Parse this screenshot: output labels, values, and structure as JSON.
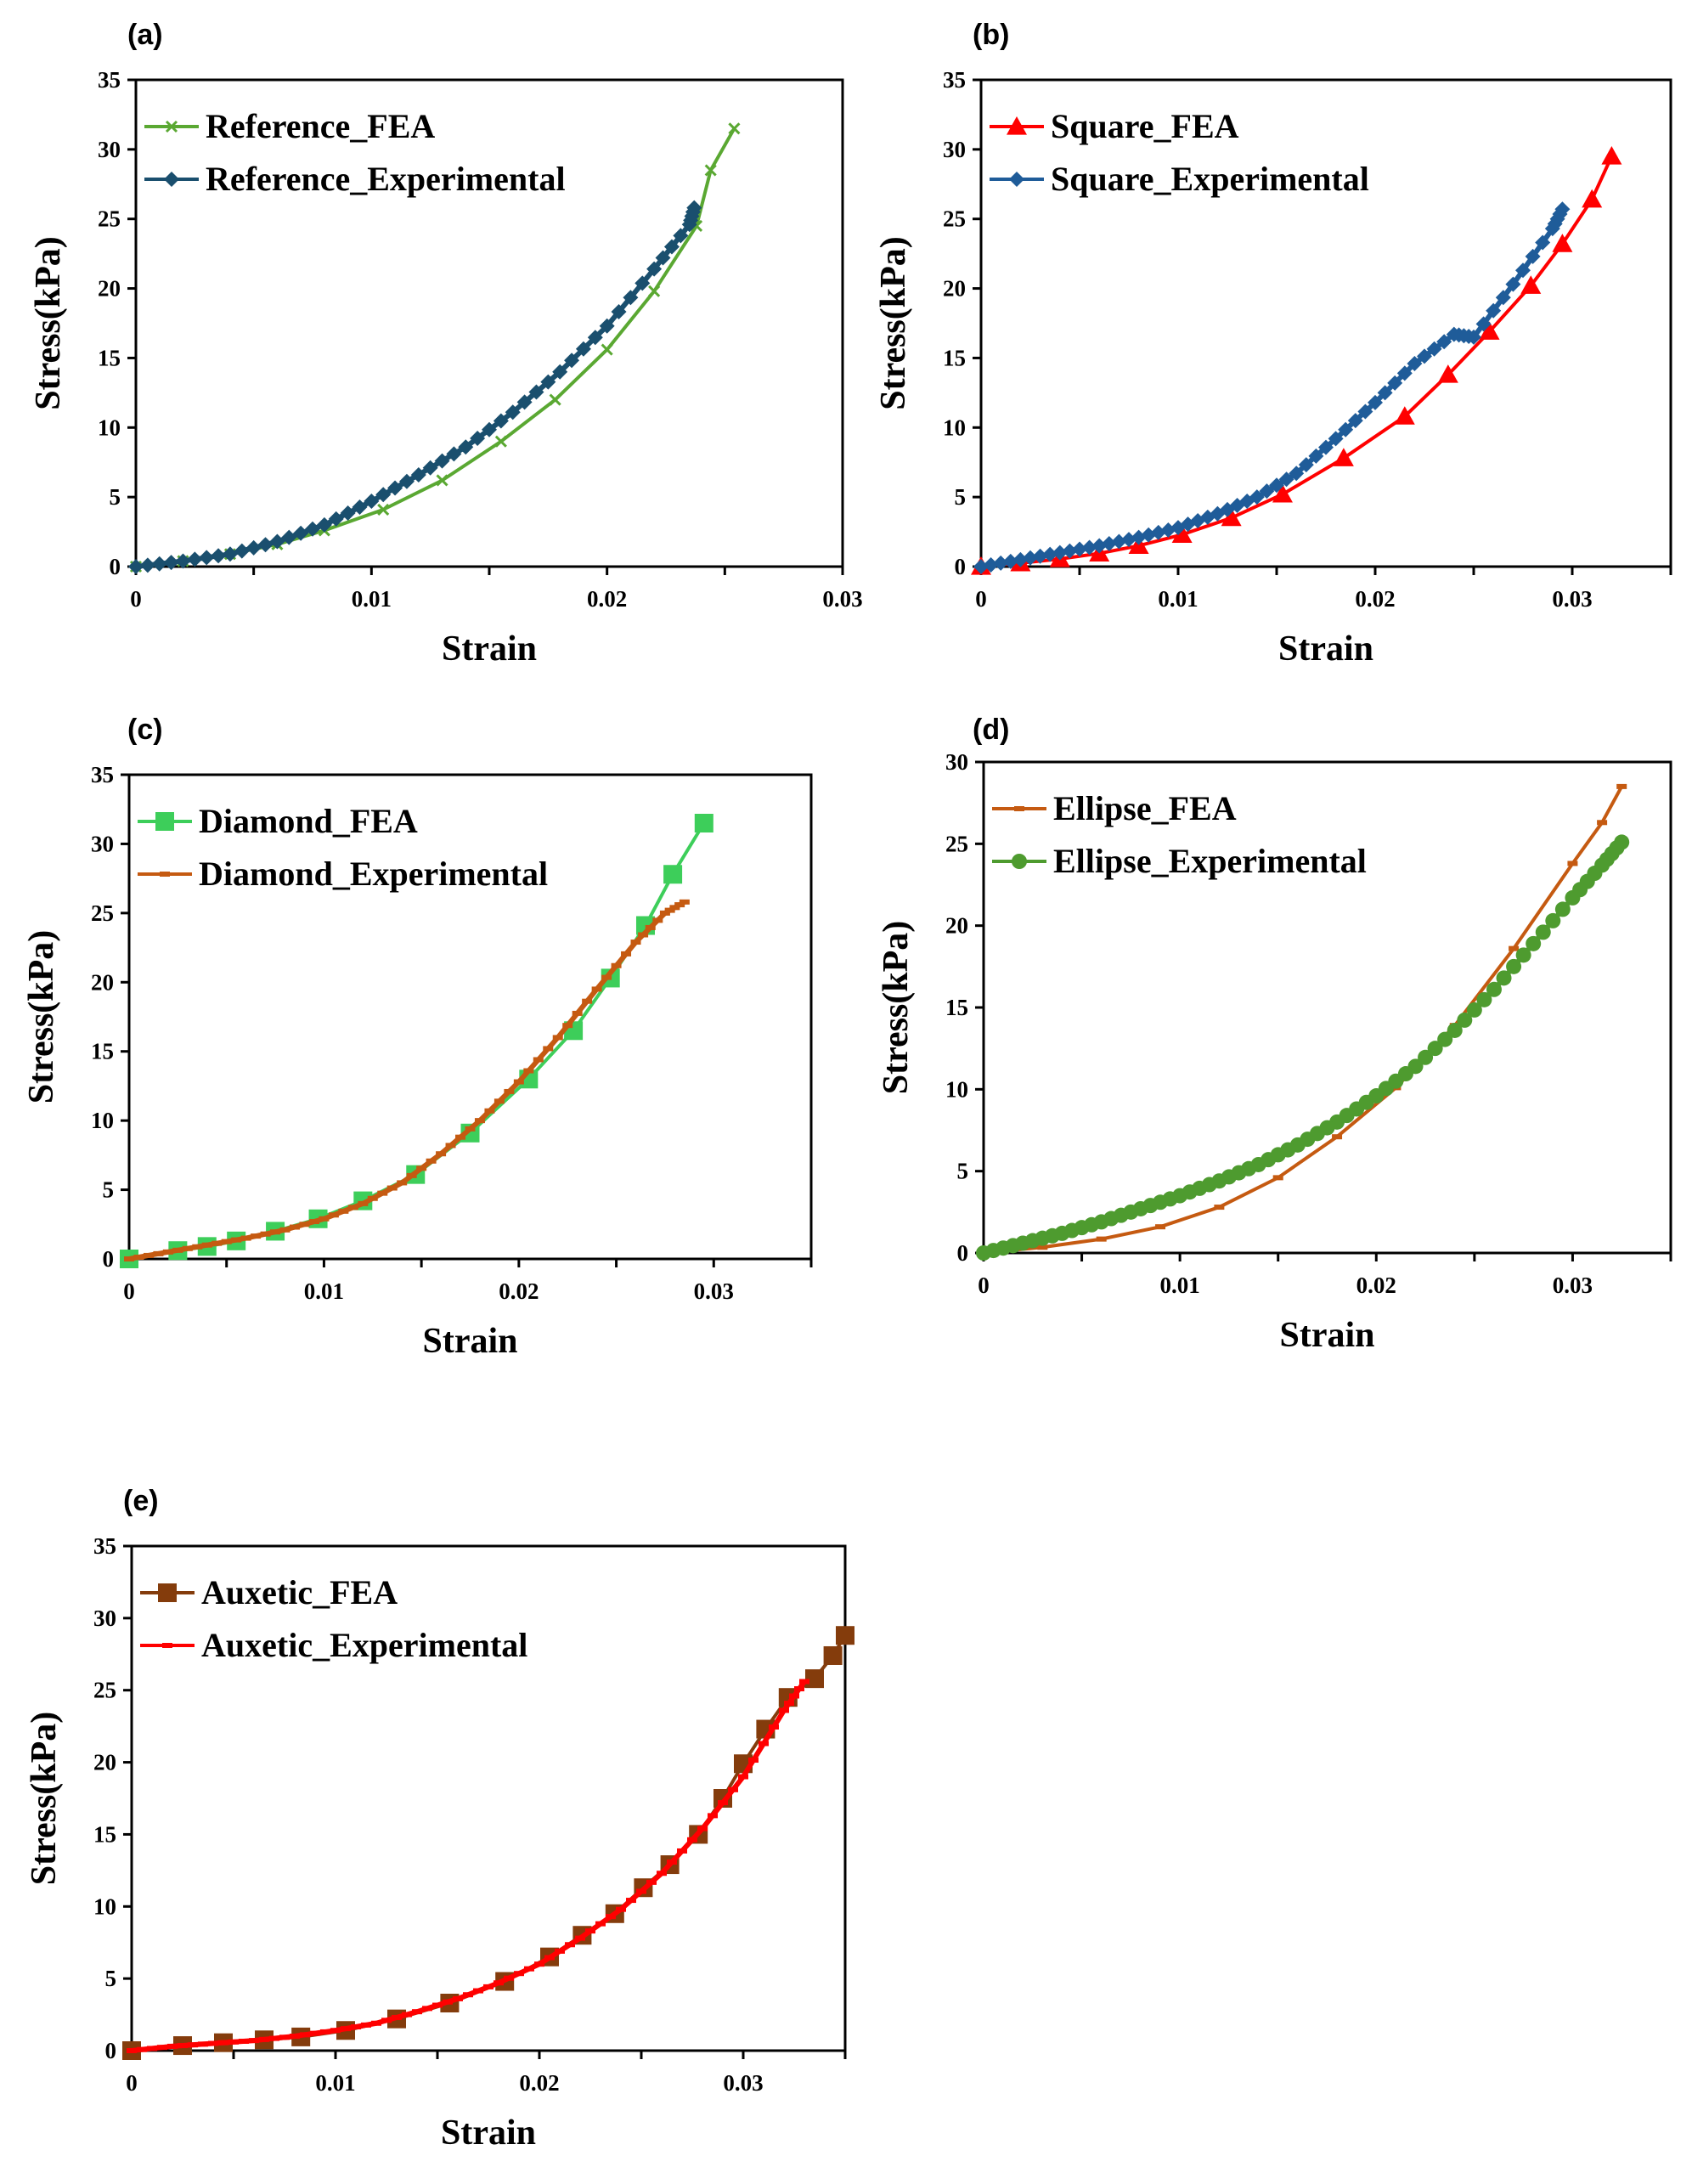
{
  "figure_title": "",
  "chart_data": [
    {
      "panel": "(a)",
      "type": "line",
      "xlabel": "Strain",
      "ylabel": "Stress(kPa)",
      "xlim": [
        0,
        0.03
      ],
      "ylim": [
        0,
        35
      ],
      "xticks": [
        "0",
        "0.01",
        "0.02",
        "0.03"
      ],
      "yticks": [
        "0",
        "5",
        "10",
        "15",
        "20",
        "25",
        "30",
        "35"
      ],
      "legend_position": "top-left",
      "series": [
        {
          "name": "Reference_FEA",
          "color": "#5aa832",
          "marker": "cross",
          "kind": "fea",
          "x": [
            0,
            0.002,
            0.004,
            0.006,
            0.008,
            0.0105,
            0.013,
            0.0155,
            0.0178,
            0.02,
            0.022,
            0.0238,
            0.0244,
            0.0254
          ],
          "y": [
            0,
            0.4,
            0.9,
            1.6,
            2.6,
            4.1,
            6.2,
            9.0,
            12.0,
            15.6,
            19.8,
            24.5,
            28.5,
            31.5
          ]
        },
        {
          "name": "Reference_Experimental",
          "color": "#1a4f6e",
          "marker": "diamond",
          "kind": "exp",
          "x": [
            0,
            0.002,
            0.004,
            0.006,
            0.008,
            0.01,
            0.012,
            0.014,
            0.016,
            0.018,
            0.02,
            0.022,
            0.0235,
            0.0237
          ],
          "y": [
            0,
            0.4,
            0.9,
            1.8,
            3.0,
            4.7,
            6.6,
            8.6,
            11.1,
            14.0,
            17.3,
            21.4,
            24.6,
            25.8
          ]
        }
      ]
    },
    {
      "panel": "(b)",
      "type": "line",
      "xlabel": "Strain",
      "ylabel": "Stress(kPa)",
      "xlim": [
        0,
        0.035
      ],
      "ylim": [
        0,
        35
      ],
      "xticks": [
        "0",
        "0.01",
        "0.02",
        "0.03"
      ],
      "yticks": [
        "0",
        "5",
        "10",
        "15",
        "20",
        "25",
        "30",
        "35"
      ],
      "legend_position": "top-left",
      "series": [
        {
          "name": "Square_FEA",
          "color": "#ff0000",
          "marker": "triangle",
          "kind": "fea",
          "x": [
            0,
            0.002,
            0.004,
            0.006,
            0.008,
            0.0102,
            0.0127,
            0.0153,
            0.0184,
            0.0215,
            0.0237,
            0.0258,
            0.0279,
            0.0295,
            0.031,
            0.032
          ],
          "y": [
            0,
            0.25,
            0.55,
            0.95,
            1.5,
            2.3,
            3.5,
            5.2,
            7.8,
            10.8,
            13.8,
            16.9,
            20.2,
            23.2,
            26.4,
            29.5
          ]
        },
        {
          "name": "Square_Experimental",
          "color": "#1f5c99",
          "marker": "diamond",
          "kind": "exp",
          "x": [
            0,
            0.002,
            0.004,
            0.006,
            0.008,
            0.01,
            0.012,
            0.014,
            0.016,
            0.018,
            0.02,
            0.022,
            0.024,
            0.025,
            0.027,
            0.029,
            0.0295
          ],
          "y": [
            0,
            0.5,
            1.0,
            1.5,
            2.1,
            2.8,
            3.8,
            5.0,
            6.7,
            9.2,
            11.8,
            14.6,
            16.7,
            16.5,
            20.3,
            24.3,
            25.7
          ]
        }
      ]
    },
    {
      "panel": "(c)",
      "type": "line",
      "xlabel": "Strain",
      "ylabel": "Stress(kPa)",
      "xlim": [
        0,
        0.035
      ],
      "ylim": [
        0,
        35
      ],
      "xticks": [
        "0",
        "0.01",
        "0.02",
        "0.03"
      ],
      "yticks": [
        "0",
        "5",
        "10",
        "15",
        "20",
        "25",
        "30",
        "35"
      ],
      "legend_position": "top-left",
      "series": [
        {
          "name": "Diamond_FEA",
          "color": "#3dce5a",
          "marker": "square",
          "kind": "fea",
          "x": [
            0,
            0.0025,
            0.004,
            0.0055,
            0.0075,
            0.0097,
            0.012,
            0.0147,
            0.0175,
            0.0205,
            0.0228,
            0.0247,
            0.0265,
            0.0279,
            0.0295
          ],
          "y": [
            0,
            0.6,
            0.9,
            1.3,
            2.0,
            2.9,
            4.2,
            6.1,
            9.1,
            13.0,
            16.5,
            20.3,
            24.1,
            27.8,
            31.5
          ]
        },
        {
          "name": "Diamond_Experimental",
          "color": "#c55a11",
          "marker": "dash",
          "kind": "exp",
          "x": [
            0,
            0.002,
            0.004,
            0.006,
            0.008,
            0.01,
            0.012,
            0.014,
            0.016,
            0.018,
            0.02,
            0.022,
            0.024,
            0.026,
            0.0275,
            0.0285
          ],
          "y": [
            0,
            0.5,
            1.0,
            1.5,
            2.1,
            2.9,
            4.0,
            5.5,
            7.6,
            10.0,
            12.8,
            16.0,
            19.5,
            22.9,
            25.0,
            25.8
          ]
        }
      ]
    },
    {
      "panel": "(d)",
      "type": "line",
      "xlabel": "Strain",
      "ylabel": "Stress(kPa)",
      "xlim": [
        0,
        0.035
      ],
      "ylim": [
        0,
        30
      ],
      "xticks": [
        "0",
        "0.01",
        "0.02",
        "0.03"
      ],
      "yticks": [
        "0",
        "5",
        "10",
        "15",
        "20",
        "25",
        "30"
      ],
      "legend_position": "top-left",
      "series": [
        {
          "name": "Ellipse_FEA",
          "color": "#c55a11",
          "marker": "dash",
          "kind": "fea",
          "x": [
            0,
            0.003,
            0.006,
            0.009,
            0.012,
            0.015,
            0.018,
            0.021,
            0.024,
            0.027,
            0.03,
            0.0315,
            0.0325
          ],
          "y": [
            0,
            0.35,
            0.85,
            1.6,
            2.8,
            4.6,
            7.1,
            10.1,
            13.9,
            18.6,
            23.8,
            26.3,
            28.5
          ]
        },
        {
          "name": "Ellipse_Experimental",
          "color": "#4e9b2f",
          "marker": "circle",
          "kind": "exp",
          "x": [
            0,
            0.002,
            0.004,
            0.006,
            0.008,
            0.01,
            0.012,
            0.014,
            0.016,
            0.018,
            0.02,
            0.022,
            0.024,
            0.026,
            0.028,
            0.03,
            0.0315,
            0.0325
          ],
          "y": [
            0,
            0.6,
            1.2,
            1.9,
            2.7,
            3.5,
            4.4,
            5.4,
            6.6,
            8.0,
            9.6,
            11.4,
            13.6,
            16.1,
            18.9,
            21.7,
            23.7,
            25.1
          ]
        }
      ]
    },
    {
      "panel": "(e)",
      "type": "line",
      "xlabel": "Strain",
      "ylabel": "Stress(kPa)",
      "xlim": [
        0,
        0.035
      ],
      "ylim": [
        0,
        35
      ],
      "xticks": [
        "0",
        "0.01",
        "0.02",
        "0.03"
      ],
      "yticks": [
        "0",
        "5",
        "10",
        "15",
        "20",
        "25",
        "30",
        "35"
      ],
      "legend_position": "top-left",
      "series": [
        {
          "name": "Auxetic_FEA",
          "color": "#843c0c",
          "marker": "square",
          "kind": "fea",
          "x": [
            0,
            0.0025,
            0.0045,
            0.0065,
            0.0083,
            0.0105,
            0.013,
            0.0156,
            0.0183,
            0.0205,
            0.0221,
            0.0237,
            0.0251,
            0.0264,
            0.0278,
            0.029,
            0.03,
            0.0311,
            0.0322,
            0.0335,
            0.0344,
            0.035
          ],
          "y": [
            0,
            0.35,
            0.55,
            0.75,
            0.95,
            1.4,
            2.2,
            3.3,
            4.8,
            6.5,
            8.0,
            9.5,
            11.3,
            12.9,
            15.0,
            17.5,
            19.9,
            22.3,
            24.5,
            25.8,
            27.4,
            28.8
          ]
        },
        {
          "name": "Auxetic_Experimental",
          "color": "#ff0000",
          "marker": "dash",
          "kind": "exp",
          "x": [
            0,
            0.002,
            0.004,
            0.006,
            0.008,
            0.01,
            0.012,
            0.014,
            0.016,
            0.018,
            0.02,
            0.022,
            0.024,
            0.026,
            0.028,
            0.03,
            0.032,
            0.033
          ],
          "y": [
            0,
            0.3,
            0.5,
            0.7,
            1.0,
            1.4,
            1.9,
            2.7,
            3.6,
            4.7,
            6.0,
            7.8,
            9.8,
            12.3,
            15.4,
            19.0,
            23.6,
            25.6
          ]
        }
      ]
    }
  ]
}
